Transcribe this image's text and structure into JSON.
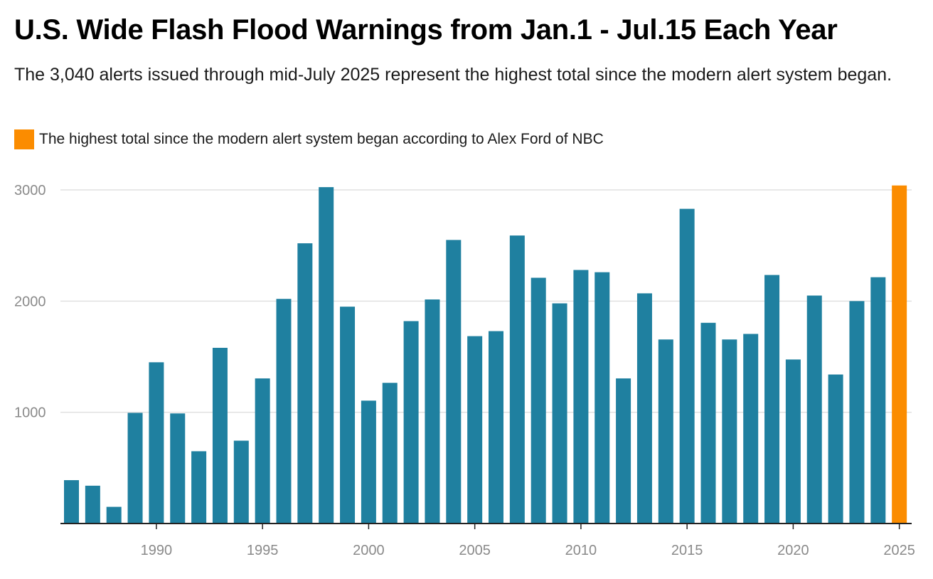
{
  "title": "U.S. Wide Flash Flood Warnings from Jan.1 - Jul.15 Each Year",
  "subtitle": "The 3,040 alerts issued through mid-July 2025 represent the highest total since the modern alert system began.",
  "legend": {
    "label": "The highest total since the modern alert system began according to Alex Ford of NBC",
    "color": "#fb8c00"
  },
  "colors": {
    "bar": "#1f80a0",
    "highlight": "#fb8c00",
    "grid": "#e0e0e0",
    "axis": "#222222"
  },
  "chart_data": {
    "type": "bar",
    "title": "U.S. Wide Flash Flood Warnings from Jan.1 - Jul.15 Each Year",
    "xlabel": "",
    "ylabel": "",
    "ylim": [
      0,
      3000
    ],
    "grid": true,
    "legend_position": "top-left",
    "x_ticks": [
      "1990",
      "1995",
      "2000",
      "2005",
      "2010",
      "2015",
      "2020",
      "2025"
    ],
    "y_ticks": [
      "1000",
      "2000",
      "3000"
    ],
    "highlight_category": "2025",
    "categories": [
      "1986",
      "1987",
      "1988",
      "1989",
      "1990",
      "1991",
      "1992",
      "1993",
      "1994",
      "1995",
      "1996",
      "1997",
      "1998",
      "1999",
      "2000",
      "2001",
      "2002",
      "2003",
      "2004",
      "2005",
      "2006",
      "2007",
      "2008",
      "2009",
      "2010",
      "2011",
      "2012",
      "2013",
      "2014",
      "2015",
      "2016",
      "2017",
      "2018",
      "2019",
      "2020",
      "2021",
      "2022",
      "2023",
      "2024",
      "2025"
    ],
    "values": [
      390,
      340,
      150,
      995,
      1450,
      990,
      650,
      1580,
      745,
      1305,
      2020,
      2520,
      3025,
      1950,
      1105,
      1265,
      1820,
      2015,
      2550,
      1685,
      1730,
      2590,
      2210,
      1980,
      2280,
      2260,
      1305,
      2070,
      1655,
      2830,
      1805,
      1655,
      1705,
      2235,
      1475,
      2050,
      1340,
      2000,
      2215,
      3040
    ]
  }
}
